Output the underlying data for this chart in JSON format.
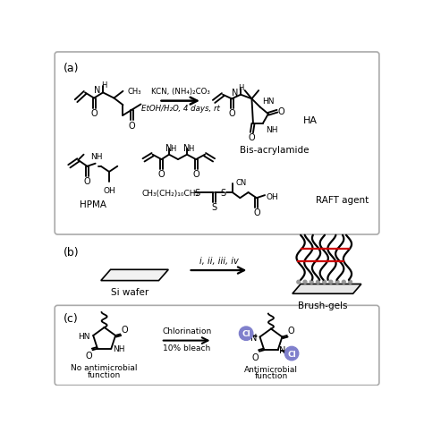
{
  "fig_width": 4.74,
  "fig_height": 4.85,
  "dpi": 100,
  "bg_color": "#ffffff",
  "panel_a_label": "(a)",
  "panel_b_label": "(b)",
  "panel_c_label": "(c)",
  "rxn_text1": "KCN, (NH₄)₂CO₃",
  "rxn_text2": "EtOH/H₂O, 4 days, rt",
  "HA_label": "HA",
  "HPMA_label": "HPMA",
  "bis_label": "Bis-acrylamide",
  "RAFT_label": "RAFT agent",
  "RAFT_formula": "CH₃(CH₂)₁₀CH₂",
  "si_wafer_label": "Si wafer",
  "brush_gels_label": "Brush-gels",
  "arrow_text_b": "i, ii, iii, iv",
  "chlorination_text1": "Chlorination",
  "chlorination_text2": "10% bleach",
  "no_anti_label1": "No antimicrobial",
  "no_anti_label2": "function",
  "anti_label1": "Antimicrobial",
  "anti_label2": "function",
  "Cl_color": "#8080cc",
  "red_color": "#cc0000",
  "box_edge_color": "#aaaaaa"
}
